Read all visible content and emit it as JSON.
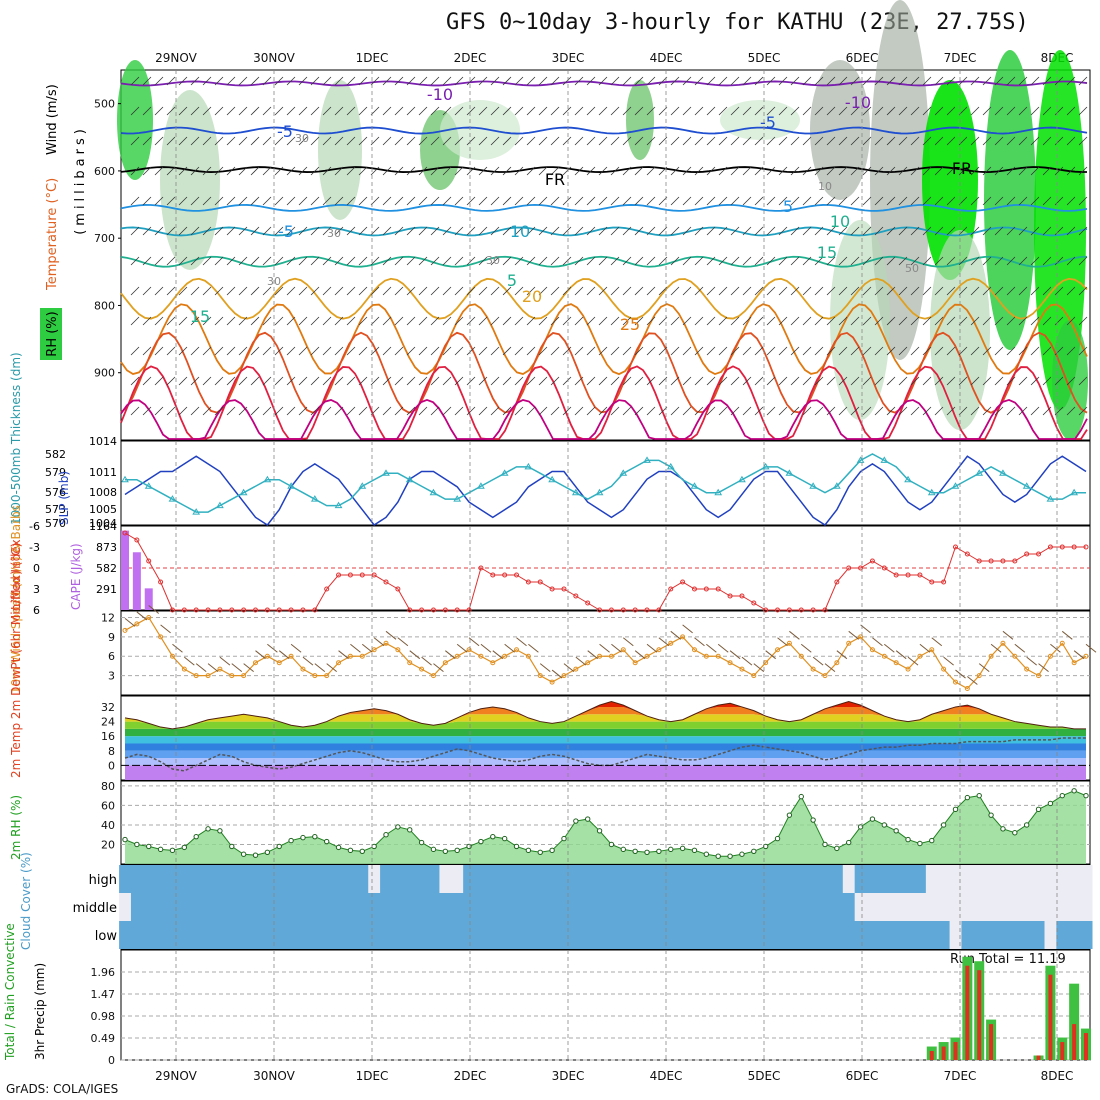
{
  "title": "GFS 0~10day 3-hourly for KATHU (23E, 27.75S)",
  "credit": "GrADS: COLA/IGES",
  "dates": [
    "29NOV",
    "30NOV",
    "1DEC",
    "2DEC",
    "3DEC",
    "4DEC",
    "5DEC",
    "6DEC",
    "7DEC",
    "8DEC"
  ],
  "chart_data": [
    {
      "type": "heatmap",
      "panel": "upper-air",
      "ylabel_parts": [
        "RH (%)",
        "Temperature (°C)",
        "Wind (m/s)"
      ],
      "yunit": "(millibars)",
      "yticks": [
        500,
        600,
        700,
        800,
        900
      ],
      "ylim": [
        1000,
        450
      ],
      "contour_labels": [
        "-10",
        "-10",
        "-5",
        "-5",
        "5",
        "10",
        "10",
        "15",
        "15",
        "20",
        "25",
        "-5",
        "5",
        "FR",
        "FR",
        "30",
        "30",
        "30",
        "30",
        "50",
        "10"
      ],
      "legend": "RH shading (green)"
    },
    {
      "type": "line",
      "panel": "pressure-thickness",
      "ylabel_left": "1000-500mb Thickness (dm)",
      "ylabel_right": "SLP (mb)",
      "left_ticks": [
        "582",
        "579",
        "576",
        "573",
        "570"
      ],
      "right_ticks": [
        "1014",
        "1011",
        "1008",
        "1005",
        "1004"
      ],
      "series": [
        {
          "name": "SLP (mb)",
          "color": "#2040c0",
          "axis": "right",
          "values": [
            1007,
            1008,
            1009,
            1010,
            1010,
            1011,
            1012,
            1011,
            1010,
            1008,
            1006,
            1004,
            1003,
            1005,
            1008,
            1010,
            1011,
            1010,
            1009,
            1007,
            1005,
            1003,
            1004,
            1006,
            1009,
            1010,
            1010,
            1009,
            1008,
            1006,
            1005,
            1004,
            1005,
            1006,
            1008,
            1009,
            1010,
            1010,
            1008,
            1006,
            1005,
            1004,
            1005,
            1007,
            1009,
            1010,
            1010,
            1009,
            1007,
            1005,
            1004,
            1005,
            1007,
            1009,
            1010,
            1010,
            1008,
            1006,
            1004,
            1003,
            1005,
            1008,
            1010,
            1011,
            1010,
            1008,
            1006,
            1005,
            1006,
            1008,
            1010,
            1012,
            1011,
            1009,
            1007,
            1006,
            1007,
            1009,
            1011,
            1012,
            1011,
            1010
          ]
        },
        {
          "name": "Thickness (dm)",
          "color": "#30b0c0",
          "axis": "left",
          "values": [
            577,
            577,
            576,
            575,
            574,
            573,
            572,
            572,
            573,
            574,
            575,
            576,
            577,
            577,
            576,
            575,
            574,
            573,
            573,
            574,
            576,
            577,
            578,
            578,
            577,
            576,
            575,
            574,
            574,
            575,
            576,
            577,
            578,
            579,
            579,
            578,
            577,
            576,
            575,
            574,
            575,
            576,
            578,
            579,
            580,
            580,
            579,
            577,
            576,
            575,
            575,
            576,
            577,
            578,
            579,
            579,
            578,
            577,
            576,
            575,
            576,
            578,
            580,
            581,
            580,
            579,
            577,
            576,
            575,
            575,
            576,
            577,
            578,
            579,
            578,
            577,
            576,
            575,
            574,
            574,
            575,
            575
          ]
        }
      ]
    },
    {
      "type": "bar",
      "panel": "cape-lifted-index",
      "ylabel_left": "Lifted Index",
      "ylabel_right": "CAPE (J/kg)",
      "left_ticks": [
        "-6",
        "-3",
        "0",
        "3",
        "6"
      ],
      "right_ticks": [
        "1164",
        "873",
        "582",
        "291"
      ],
      "cape_values": [
        1100,
        800,
        300,
        0,
        0,
        0,
        0,
        0,
        0,
        0,
        0,
        0,
        0,
        0,
        0,
        0,
        0,
        0,
        0,
        0,
        0,
        0,
        0,
        0,
        0,
        0,
        0,
        0,
        0,
        0,
        0,
        0,
        0,
        0,
        0,
        0,
        0,
        0,
        0,
        0,
        0,
        0,
        0,
        0,
        0,
        0,
        0,
        0,
        0,
        0,
        0,
        0,
        0,
        0,
        0,
        0,
        0,
        0,
        0,
        0,
        0,
        0,
        0,
        0,
        0,
        0,
        0,
        0,
        0,
        0,
        0,
        0,
        0,
        0,
        0,
        0,
        0,
        0,
        0,
        0,
        0,
        0
      ],
      "lifted_index": [
        -5,
        -4,
        -1,
        2,
        6,
        6,
        6,
        6,
        6,
        6,
        6,
        6,
        6,
        6,
        6,
        6,
        6,
        3,
        1,
        1,
        1,
        1,
        2,
        3,
        6,
        6,
        6,
        6,
        6,
        6,
        0,
        1,
        1,
        1,
        2,
        2,
        3,
        3,
        4,
        5,
        6,
        6,
        6,
        6,
        6,
        6,
        3,
        2,
        3,
        3,
        3,
        4,
        4,
        5,
        6,
        6,
        6,
        6,
        6,
        6,
        2,
        0,
        0,
        -1,
        0,
        1,
        1,
        1,
        2,
        2,
        -3,
        -2,
        -1,
        -1,
        -1,
        -1,
        -2,
        -2,
        -3,
        -3,
        -3,
        -3
      ]
    },
    {
      "type": "line",
      "panel": "10m-wind",
      "ylabel": "10m Wind Speed (m/s) & Barbs",
      "yticks": [
        12,
        9,
        6,
        3
      ],
      "ylim": [
        0,
        13
      ],
      "series": [
        {
          "name": "Speed",
          "color": "#e09020",
          "values": [
            10,
            11,
            12,
            9,
            6,
            4,
            3,
            3,
            4,
            3,
            3,
            5,
            6,
            5,
            6,
            4,
            3,
            3,
            5,
            6,
            6,
            7,
            8,
            7,
            5,
            4,
            3,
            5,
            6,
            7,
            6,
            5,
            6,
            7,
            6,
            3,
            2,
            3,
            4,
            5,
            6,
            6,
            7,
            5,
            6,
            7,
            8,
            9,
            7,
            6,
            6,
            5,
            4,
            3,
            5,
            7,
            8,
            6,
            4,
            3,
            5,
            8,
            9,
            7,
            6,
            5,
            4,
            6,
            7,
            4,
            2,
            1,
            3,
            6,
            8,
            6,
            4,
            3,
            6,
            8,
            5,
            6
          ]
        }
      ]
    },
    {
      "type": "area",
      "panel": "2m-temp",
      "ylabel": "2m Temp 2m DewPt (6hr Min/Max) (°C)",
      "yticks": [
        32,
        24,
        16,
        8,
        0
      ],
      "ylim": [
        -8,
        38
      ],
      "series": [
        {
          "name": "2m Temp",
          "color": "#d04000",
          "values": [
            26,
            25,
            23,
            21,
            20,
            21,
            23,
            25,
            26,
            27,
            28,
            27,
            26,
            24,
            22,
            21,
            22,
            24,
            27,
            29,
            30,
            31,
            30,
            28,
            25,
            23,
            22,
            23,
            26,
            29,
            31,
            32,
            31,
            29,
            26,
            24,
            23,
            24,
            27,
            30,
            33,
            35,
            33,
            30,
            27,
            25,
            24,
            25,
            28,
            31,
            33,
            34,
            32,
            30,
            27,
            25,
            24,
            25,
            28,
            31,
            33,
            35,
            33,
            30,
            27,
            25,
            24,
            25,
            28,
            30,
            32,
            33,
            31,
            28,
            26,
            24,
            23,
            22,
            21,
            21,
            20,
            20
          ]
        },
        {
          "name": "2m DewPt",
          "color": "#404040",
          "values": [
            4,
            6,
            5,
            2,
            -2,
            -3,
            0,
            3,
            6,
            5,
            2,
            0,
            -1,
            -2,
            -1,
            1,
            3,
            5,
            7,
            8,
            7,
            5,
            3,
            2,
            2,
            3,
            5,
            7,
            9,
            8,
            6,
            4,
            3,
            2,
            3,
            5,
            6,
            5,
            3,
            1,
            0,
            0,
            2,
            4,
            6,
            5,
            4,
            3,
            3,
            4,
            6,
            8,
            10,
            11,
            10,
            9,
            8,
            7,
            5,
            3,
            4,
            6,
            8,
            9,
            10,
            10,
            11,
            11,
            12,
            12,
            12,
            13,
            13,
            13,
            13,
            14,
            14,
            14,
            14,
            15,
            15,
            15
          ]
        }
      ]
    },
    {
      "type": "area",
      "panel": "2m-rh",
      "ylabel": "2m RH (%)",
      "yticks": [
        80,
        60,
        40,
        20
      ],
      "ylim": [
        0,
        85
      ],
      "values": [
        25,
        20,
        18,
        15,
        14,
        17,
        28,
        36,
        34,
        18,
        10,
        9,
        12,
        18,
        24,
        27,
        28,
        23,
        17,
        14,
        13,
        18,
        30,
        38,
        35,
        22,
        15,
        13,
        14,
        18,
        23,
        28,
        26,
        18,
        14,
        12,
        14,
        26,
        44,
        46,
        34,
        20,
        15,
        13,
        12,
        13,
        15,
        16,
        14,
        10,
        8,
        8,
        10,
        13,
        18,
        26,
        50,
        69,
        45,
        20,
        16,
        22,
        38,
        46,
        40,
        34,
        25,
        21,
        24,
        40,
        56,
        68,
        70,
        50,
        36,
        32,
        40,
        56,
        62,
        70,
        75,
        70
      ]
    },
    {
      "type": "heatmap",
      "panel": "cloud-cover",
      "ylabel": "Cloud Cover (%)",
      "rows": [
        "high",
        "middle",
        "low"
      ],
      "high_cover": [
        1,
        1,
        1,
        1,
        1,
        1,
        1,
        1,
        1,
        1,
        1,
        1,
        1,
        1,
        1,
        1,
        1,
        1,
        1,
        1,
        1,
        0,
        1,
        1,
        1,
        1,
        1,
        0,
        0,
        1,
        1,
        1,
        1,
        1,
        1,
        1,
        1,
        1,
        1,
        1,
        1,
        1,
        1,
        1,
        1,
        1,
        1,
        1,
        1,
        1,
        1,
        1,
        1,
        1,
        1,
        1,
        1,
        1,
        1,
        1,
        1,
        0,
        1,
        1,
        1,
        1,
        1,
        1,
        0,
        0,
        0,
        0,
        0,
        0,
        0,
        0,
        0,
        0,
        0,
        0,
        0,
        0
      ],
      "middle_cover": [
        0,
        1,
        1,
        1,
        1,
        1,
        1,
        1,
        1,
        1,
        1,
        1,
        1,
        1,
        1,
        1,
        1,
        1,
        1,
        1,
        1,
        1,
        1,
        1,
        1,
        1,
        1,
        1,
        1,
        1,
        1,
        1,
        1,
        1,
        1,
        1,
        1,
        1,
        1,
        1,
        1,
        1,
        1,
        1,
        1,
        1,
        1,
        1,
        1,
        1,
        1,
        1,
        1,
        1,
        1,
        1,
        1,
        1,
        1,
        1,
        1,
        1,
        0,
        0,
        0,
        0,
        0,
        0,
        0,
        0,
        0,
        0,
        0,
        0,
        0,
        0,
        0,
        0,
        0,
        0,
        0,
        0
      ],
      "low_cover": [
        1,
        1,
        1,
        1,
        1,
        1,
        1,
        1,
        1,
        1,
        1,
        1,
        1,
        1,
        1,
        1,
        1,
        1,
        1,
        1,
        1,
        1,
        1,
        1,
        1,
        1,
        1,
        1,
        1,
        1,
        1,
        1,
        1,
        1,
        1,
        1,
        1,
        1,
        1,
        1,
        1,
        1,
        1,
        1,
        1,
        1,
        1,
        1,
        1,
        1,
        1,
        1,
        1,
        1,
        1,
        1,
        1,
        1,
        1,
        1,
        1,
        1,
        1,
        1,
        1,
        1,
        1,
        1,
        1,
        1,
        0,
        1,
        1,
        1,
        1,
        1,
        1,
        1,
        0,
        1,
        1,
        1
      ]
    },
    {
      "type": "bar",
      "panel": "precip",
      "ylabel_left": "Total / Rain Convective",
      "ylabel": "3hr Precip (mm)",
      "yticks": [
        "1.96",
        "1.47",
        "0.98",
        "0.49",
        "0"
      ],
      "ylim": [
        0,
        2.45
      ],
      "run_total_label": "Run Total = 11.19",
      "total_values": [
        0,
        0,
        0,
        0,
        0,
        0,
        0,
        0,
        0,
        0,
        0,
        0,
        0,
        0,
        0,
        0,
        0,
        0,
        0,
        0,
        0,
        0,
        0,
        0,
        0,
        0,
        0,
        0,
        0,
        0,
        0,
        0,
        0,
        0,
        0,
        0,
        0,
        0,
        0,
        0,
        0,
        0,
        0,
        0,
        0,
        0,
        0,
        0,
        0,
        0,
        0,
        0,
        0,
        0,
        0,
        0,
        0,
        0,
        0,
        0,
        0,
        0,
        0,
        0,
        0,
        0,
        0,
        0,
        0.3,
        0.4,
        0.5,
        2.3,
        2.2,
        0.9,
        0,
        0,
        0,
        0.1,
        2.1,
        0.5,
        1.7,
        0.7
      ],
      "convective_values": [
        0,
        0,
        0,
        0,
        0,
        0,
        0,
        0,
        0,
        0,
        0,
        0,
        0,
        0,
        0,
        0,
        0,
        0,
        0,
        0,
        0,
        0,
        0,
        0,
        0,
        0,
        0,
        0,
        0,
        0,
        0,
        0,
        0,
        0,
        0,
        0,
        0,
        0,
        0,
        0,
        0,
        0,
        0,
        0,
        0,
        0,
        0,
        0,
        0,
        0,
        0,
        0,
        0,
        0,
        0,
        0,
        0,
        0,
        0,
        0,
        0,
        0,
        0,
        0,
        0,
        0,
        0,
        0,
        0.2,
        0.3,
        0.4,
        2.1,
        2.0,
        0.8,
        0,
        0,
        0,
        0.1,
        1.9,
        0.4,
        0.8,
        0.6
      ]
    }
  ]
}
